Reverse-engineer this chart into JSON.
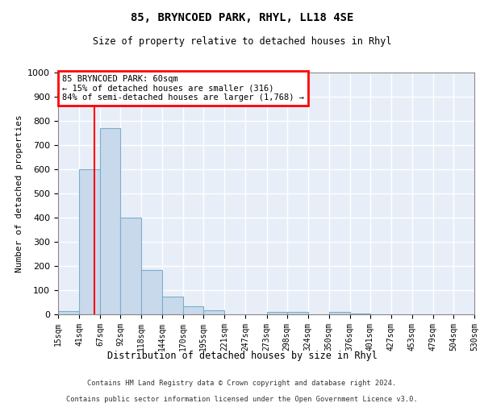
{
  "title": "85, BRYNCOED PARK, RHYL, LL18 4SE",
  "subtitle": "Size of property relative to detached houses in Rhyl",
  "xlabel": "Distribution of detached houses by size in Rhyl",
  "ylabel": "Number of detached properties",
  "bar_color": "#c9d9ec",
  "bar_edge_color": "#7aaecc",
  "background_color": "#e8eef8",
  "grid_color": "#ffffff",
  "bin_edges": [
    15,
    41,
    67,
    92,
    118,
    144,
    170,
    195,
    221,
    247,
    273,
    298,
    324,
    350,
    376,
    401,
    427,
    453,
    479,
    504,
    530
  ],
  "bin_values": [
    12,
    600,
    770,
    400,
    185,
    75,
    35,
    17,
    0,
    0,
    10,
    10,
    0,
    10,
    5,
    0,
    0,
    0,
    0,
    0
  ],
  "red_line_x": 60,
  "annotation_text": "85 BRYNCOED PARK: 60sqm\n← 15% of detached houses are smaller (316)\n84% of semi-detached houses are larger (1,768) →",
  "annotation_box_color": "#cc0000",
  "ylim": [
    0,
    1000
  ],
  "yticks": [
    0,
    100,
    200,
    300,
    400,
    500,
    600,
    700,
    800,
    900,
    1000
  ],
  "footer_line1": "Contains HM Land Registry data © Crown copyright and database right 2024.",
  "footer_line2": "Contains public sector information licensed under the Open Government Licence v3.0."
}
